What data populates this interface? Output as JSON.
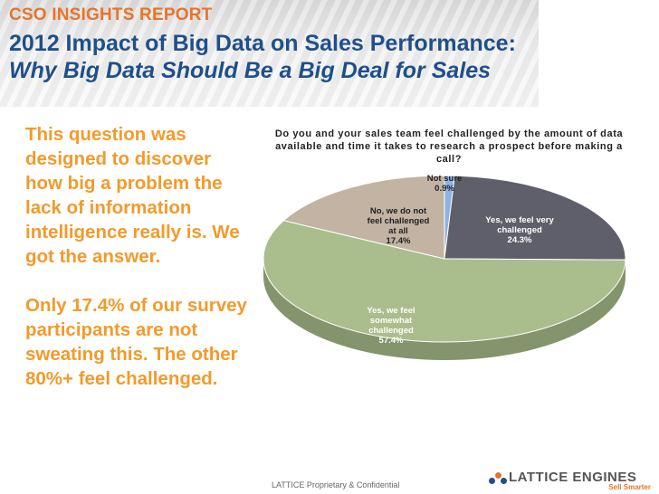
{
  "banner": {
    "kicker": "CSO INSIGHTS REPORT",
    "title": "2012 Impact of Big Data on Sales Performance:",
    "subtitle": "Why Big Data Should Be a Big Deal for Sales"
  },
  "left_text": {
    "p1": "This question was designed to discover how big a problem the lack of information intelligence really is.  We got the answer.",
    "p2": "Only 17.4% of our survey participants are not sweating this. The other 80%+ feel challenged."
  },
  "chart_data": {
    "type": "pie",
    "title": "Do you and your sales team feel challenged by the amount of data available and time it takes to research a prospect before making a call?",
    "slices": [
      {
        "label_lines": [
          "Not sure"
        ],
        "value": 0.9,
        "value_label": "0.9%",
        "color": "#8db3e2"
      },
      {
        "label_lines": [
          "Yes, we feel very",
          "challenged"
        ],
        "value": 24.3,
        "value_label": "24.3%",
        "color": "#5f5f6b"
      },
      {
        "label_lines": [
          "Yes, we feel",
          "somewhat",
          "challenged"
        ],
        "value": 57.4,
        "value_label": "57.4%",
        "color": "#a9be8c"
      },
      {
        "label_lines": [
          "No, we do not",
          "feel challenged",
          "at all"
        ],
        "value": 17.4,
        "value_label": "17.4%",
        "color": "#c2b3a3"
      }
    ]
  },
  "footer": {
    "note": "LATTICE Proprietary & Confidential",
    "logo_name": "LATTICE ENGINES",
    "logo_tag": "Sell Smarter"
  },
  "colors": {
    "accent_orange": "#f39a2a",
    "brand_blue": "#1f4f8a"
  }
}
